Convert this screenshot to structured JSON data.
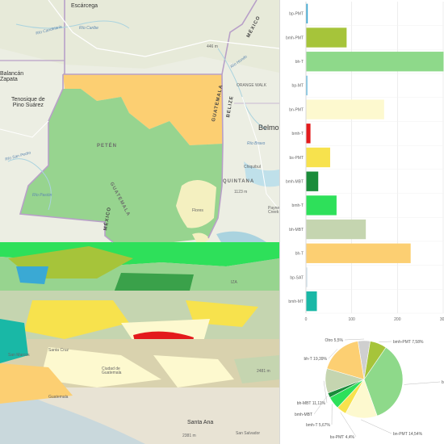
{
  "map": {
    "places": {
      "escarcega": "Escárcega",
      "balancan": "Balancán\nZapata",
      "tenosique": "Tenosique de\nPino Suárez",
      "mexico_ne": "MÉXICO",
      "mexico_w": "MÉXICO",
      "guatemala_n": "GUATEMALA",
      "guatemala_c": "GUATEMALA",
      "belize": "BELIZE",
      "belmopan": "Belmo",
      "orange_walk": "ORANGE WALK",
      "peten": "PETÉN",
      "quintana": "QUINTANA",
      "chiquibul": "Chiquibul",
      "payne_creek": "Payne's\nCreek",
      "flores": "Flores",
      "izabal": "IZA",
      "santa_ana": "Santa Ana",
      "san_salvador": "San Salvador",
      "santa_cruz": "Santa Cruz",
      "san_marcos": "San Marcos",
      "guatemala_city": "Ciudad de\nGuatemala",
      "guatemala_label": "Guatemala",
      "rio_candelaria": "Río Candelaria",
      "rio_caribe": "Río Caribe",
      "rio_hondo": "Río Hondo",
      "rio_bravo": "Río Bravo",
      "rio_san_pedro": "Río San Pedro",
      "rio_pasion": "Río Pasión",
      "elev_446": "446 m",
      "elev_1123": "1123 m",
      "elev_2381": "2381 m",
      "elev_2481": "2481 m"
    }
  },
  "chart_data": [
    {
      "type": "bar",
      "orientation": "horizontal",
      "categories": [
        "bp-PMT",
        "bmh-PMT",
        "bh-T",
        "bp-MT",
        "bn-PMT",
        "bmh-T",
        "bs-PMT",
        "bmh-MBT",
        "bmh-T",
        "bh-MBT",
        "bh-T",
        "bp-SAT",
        "bmh-MT"
      ],
      "values": [
        3,
        88,
        305,
        2,
        170,
        9,
        52,
        26,
        66,
        130,
        228,
        1,
        23
      ],
      "colors": [
        "#3aa9d4",
        "#a6c43a",
        "#8ed98a",
        "#5ab7df",
        "#fdf9cf",
        "#e31a1c",
        "#f7e24d",
        "#1a8c3a",
        "#2ee05a",
        "#c5d5b0",
        "#fccf72",
        "#cfe0ea",
        "#19b8a6"
      ],
      "xlim": [
        0,
        300
      ],
      "xticks": [
        "0",
        "100",
        "200",
        "300"
      ],
      "grid": true
    },
    {
      "type": "pie",
      "slices": [
        {
          "label": "Otro 5,5%",
          "value": 5.5,
          "color": "#cfcfcf"
        },
        {
          "label": "bmh-PMT 7,58%",
          "value": 7.58,
          "color": "#a6c43a"
        },
        {
          "label": "bh-T",
          "value": 37.85,
          "color": "#8ed98a"
        },
        {
          "label": "bn-PMT 14,54%",
          "value": 14.54,
          "color": "#fdf9cf"
        },
        {
          "label": "bs-PMT 4,4%",
          "value": 4.4,
          "color": "#f7e24d"
        },
        {
          "label": "bmh-T 5,67%",
          "value": 5.67,
          "color": "#2ee05a"
        },
        {
          "label": "bmh-MBT",
          "value": 2.2,
          "color": "#1a8c3a"
        },
        {
          "label": "bh-MBT 11,11%",
          "value": 11.11,
          "color": "#c5d5b0"
        },
        {
          "label": "bh-T 19,39%",
          "value": 19.39,
          "color": "#fccf72"
        }
      ]
    }
  ],
  "colors": {
    "land": "#eef0e6",
    "water": "#aad3df",
    "border": "#b8a0c8",
    "peten": "#97d48f",
    "peten_north": "#fccf72",
    "savanna": "#f4f0c0"
  }
}
